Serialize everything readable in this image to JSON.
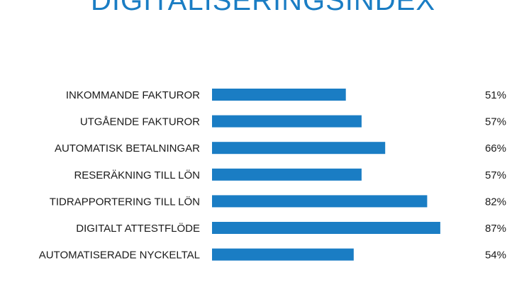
{
  "colors": {
    "bar": "#1a7dc4",
    "title": "#1a7dc4",
    "text": "#1a1a1a"
  },
  "chart_data": {
    "type": "bar",
    "orientation": "horizontal",
    "title": "DIGITALISERINGSINDEX",
    "categories": [
      "INKOMMANDE FAKTUROR",
      "UTGÅENDE FAKTUROR",
      "AUTOMATISK BETALNINGAR",
      "RESERÄKNING TILL LÖN",
      "TIDRAPPORTERING TILL LÖN",
      "DIGITALT ATTESTFLÖDE",
      "AUTOMATISERADE NYCKELTAL"
    ],
    "values": [
      51,
      57,
      66,
      57,
      82,
      87,
      54
    ],
    "value_labels": [
      "51%",
      "57%",
      "66%",
      "57%",
      "82%",
      "87%",
      "54%"
    ],
    "unit": "%",
    "xlim": [
      0,
      100
    ],
    "grid": false,
    "legend": false
  }
}
